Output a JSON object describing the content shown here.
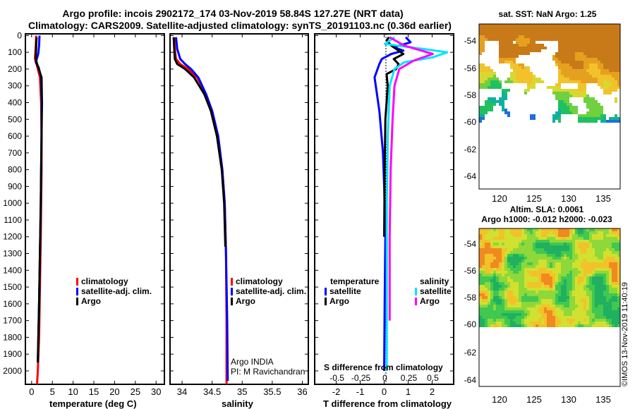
{
  "header": {
    "title_line1": "Argo profile: incois 2902172_174 03-Nov-2019 58.84S 127.27E (NRT data)",
    "title_line2": "Climatology: CARS2009. Satellite-adjusted climatology: synTS_20191103.nc (0.36d earlier)"
  },
  "colors": {
    "climatology": "#ff0000",
    "satellite": "#0000ff",
    "argo": "#000000",
    "sal_satellite": "#00e5ff",
    "sal_argo": "#ff00ff"
  },
  "chart_data": [
    {
      "type": "line",
      "id": "temperature",
      "xlabel": "temperature (deg C)",
      "ylabel": "",
      "xlim": [
        -1.5,
        32
      ],
      "ylim": [
        2080,
        -10
      ],
      "xticks": [
        0,
        5,
        10,
        15,
        20,
        25,
        30
      ],
      "yticks": [
        0,
        100,
        200,
        300,
        400,
        500,
        600,
        700,
        800,
        900,
        1000,
        1100,
        1200,
        1300,
        1400,
        1500,
        1600,
        1700,
        1800,
        1900,
        2000
      ],
      "legend": [
        "climatology",
        "satellite-adj. clim.",
        "Argo"
      ],
      "series": [
        {
          "name": "climatology",
          "color": "#ff0000",
          "x": [
            1.1,
            1.0,
            0.8,
            1.3,
            2.0,
            2.3,
            2.4,
            2.4,
            2.3,
            2.2,
            2.0,
            1.8,
            1.5,
            1.3
          ],
          "y": [
            0,
            60,
            140,
            180,
            250,
            400,
            600,
            800,
            1000,
            1200,
            1500,
            1800,
            2000,
            2080
          ]
        },
        {
          "name": "satellite-adj. clim.",
          "color": "#0000ff",
          "x": [
            1.9,
            1.8,
            1.6,
            1.0,
            1.7,
            2.3,
            2.4,
            2.4,
            2.3,
            2.2,
            2.0,
            1.8,
            1.5
          ],
          "y": [
            0,
            60,
            110,
            160,
            190,
            250,
            400,
            600,
            800,
            1000,
            1300,
            1600,
            1950
          ]
        },
        {
          "name": "Argo",
          "color": "#000000",
          "x": [
            1.2,
            1.1,
            1.0,
            1.2,
            1.6,
            2.4,
            2.5,
            2.4,
            2.3,
            2.2,
            2.0,
            1.8,
            1.5
          ],
          "y": [
            10,
            60,
            130,
            160,
            190,
            250,
            400,
            600,
            800,
            1000,
            1300,
            1600,
            1950
          ]
        }
      ]
    },
    {
      "type": "line",
      "id": "salinity",
      "xlabel": "salinity",
      "ylabel": "",
      "xlim": [
        33.8,
        36.1
      ],
      "ylim": [
        2080,
        -10
      ],
      "xticks": [
        34,
        34.5,
        35,
        35.5,
        36
      ],
      "xticklabels": [
        "34",
        "34.5",
        "35",
        "35.5",
        "36"
      ],
      "legend": [
        "climatology",
        "satellite-adj. clim.",
        "Argo"
      ],
      "annotation": [
        "Argo INDIA",
        "PI: M Ravichandran"
      ],
      "series": [
        {
          "name": "climatology",
          "color": "#ff0000",
          "x": [
            33.87,
            33.88,
            33.9,
            33.97,
            34.1,
            34.25,
            34.4,
            34.5,
            34.6,
            34.67,
            34.71,
            34.73,
            34.74,
            34.74
          ],
          "y": [
            10,
            80,
            140,
            170,
            200,
            250,
            350,
            450,
            600,
            800,
            1000,
            1300,
            1700,
            2080
          ]
        },
        {
          "name": "satellite-adj. clim.",
          "color": "#0000ff",
          "x": [
            33.9,
            33.92,
            33.97,
            34.05,
            34.15,
            34.27,
            34.4,
            34.5,
            34.6,
            34.67,
            34.71,
            34.73,
            34.75,
            34.76
          ],
          "y": [
            10,
            80,
            140,
            170,
            200,
            250,
            350,
            450,
            600,
            800,
            1000,
            1300,
            1700,
            2060
          ]
        },
        {
          "name": "Argo",
          "color": "#000000",
          "x": [
            33.86,
            33.87,
            33.88,
            33.92,
            34.05,
            34.2,
            34.37,
            34.48,
            34.58,
            34.66,
            34.7,
            34.72
          ],
          "y": [
            10,
            80,
            140,
            170,
            200,
            250,
            350,
            450,
            600,
            800,
            1000,
            1260
          ]
        }
      ]
    },
    {
      "type": "line",
      "id": "difference",
      "xlabel": "T difference from climatology",
      "top_axis_label": "S difference from climatology",
      "xlim": [
        -2.9,
        2.9
      ],
      "ylim": [
        2080,
        -10
      ],
      "xticks": [
        -2,
        -1,
        0,
        1,
        2
      ],
      "top_ticks": [
        -0.5,
        -0.25,
        0,
        0.25,
        0.5
      ],
      "top_ticklabels": [
        "-0.5",
        "-0.25",
        "0",
        "0.25",
        "0.5"
      ],
      "legend_titles": [
        "temperature",
        "salinity"
      ],
      "legend_left": [
        "satellite",
        "Argo"
      ],
      "legend_right": [
        "satellite",
        "Argo"
      ],
      "series": [
        {
          "name": "T satellite",
          "color": "#0000ff",
          "x": [
            0.9,
            1.1,
            0.4,
            0.8,
            0.3,
            -0.1,
            -0.2,
            -0.4,
            -0.2,
            -0.05,
            0,
            0.05,
            0.02,
            0
          ],
          "y": [
            10,
            40,
            70,
            90,
            110,
            140,
            170,
            250,
            450,
            700,
            900,
            1200,
            1600,
            2000
          ]
        },
        {
          "name": "T Argo",
          "color": "#000000",
          "x": [
            0.2,
            0.1,
            0.3,
            0.6,
            0.8,
            0.4,
            0.6,
            0.5,
            0.1,
            0.15,
            0.05,
            0.02,
            0
          ],
          "y": [
            10,
            30,
            60,
            90,
            110,
            140,
            170,
            200,
            230,
            300,
            500,
            800,
            1200
          ]
        },
        {
          "name": "S satellite",
          "color": "#00e5ff",
          "x": [
            0.1,
            0.0,
            0.4,
            0.65,
            0.5,
            0.2,
            0.1,
            0.05,
            0.03,
            0.02,
            0.02,
            0.02
          ],
          "y": [
            10,
            50,
            80,
            100,
            130,
            160,
            200,
            300,
            600,
            1000,
            1500,
            2000
          ]
        },
        {
          "name": "S Argo",
          "color": "#ff00ff",
          "x": [
            0.05,
            0.2,
            0.5,
            0.3,
            0.15,
            0.1,
            0.08,
            0.06,
            0.05,
            0.05
          ],
          "y": [
            10,
            60,
            110,
            150,
            200,
            300,
            500,
            800,
            1200,
            1700
          ]
        }
      ]
    }
  ],
  "maps": {
    "sst": {
      "title": "sat. SST: NaN Argo: 1.25",
      "yticks": [
        "-54",
        "-56",
        "-58",
        "-60",
        "-62",
        "-64"
      ],
      "xticks": [
        "120",
        "125",
        "130",
        "135"
      ]
    },
    "sla": {
      "title_line1": "Altim. SLA: 0.0061",
      "title_line2": "Argo h1000: -0.012 h2000: -0.023",
      "yticks": [
        "-54",
        "-56",
        "-58",
        "-60",
        "-62",
        "-64"
      ],
      "xticks": [
        "120",
        "125",
        "130",
        "135"
      ]
    },
    "credit": "©IMOS 13-Nov-2019 11:40:19"
  }
}
